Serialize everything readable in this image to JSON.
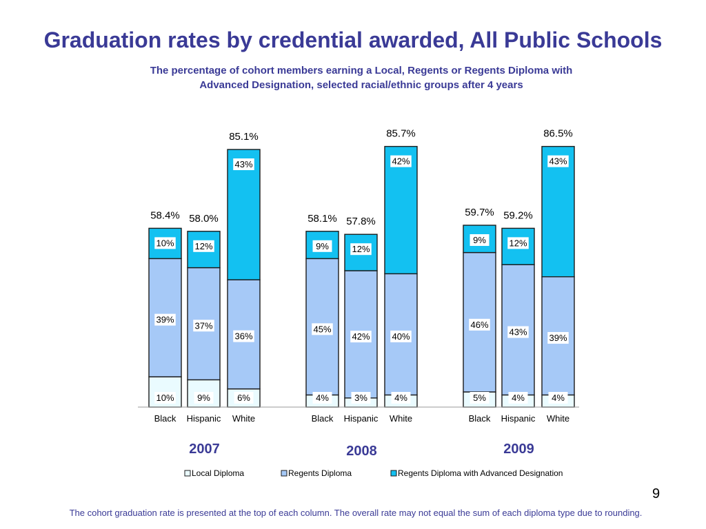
{
  "slide": {
    "title": "Graduation rates by credential awarded, All Public Schools",
    "subtitle_line1": "The percentage of cohort members earning a Local, Regents or Regents Diploma with",
    "subtitle_line2": "Advanced Designation, selected racial/ethnic groups after 4 years",
    "page_number": "9",
    "footnote": "The cohort graduation rate is presented at the top of each column. The overall rate may not equal the sum of each diploma type due to rounding."
  },
  "chart_data": {
    "type": "bar",
    "stacked": true,
    "title": "Graduation rates by credential awarded, All Public Schools",
    "legend_position": "bottom",
    "series": [
      {
        "name": "Local Diploma",
        "color": "#eafbff"
      },
      {
        "name": "Regents Diploma",
        "color": "#a6c9f7"
      },
      {
        "name": "Regents Diploma with Advanced Designation",
        "color": "#13c1f1"
      }
    ],
    "groups": [
      {
        "year": "2007",
        "bars": [
          {
            "category": "Black",
            "total": "58.4%",
            "values": [
              10,
              39,
              10
            ],
            "labels": [
              "10%",
              "39%",
              "10%"
            ]
          },
          {
            "category": "Hispanic",
            "total": "58.0%",
            "values": [
              9,
              37,
              12
            ],
            "labels": [
              "9%",
              "37%",
              "12%"
            ]
          },
          {
            "category": "White",
            "total": "85.1%",
            "values": [
              6,
              36,
              43
            ],
            "labels": [
              "6%",
              "36%",
              "43%"
            ]
          }
        ]
      },
      {
        "year": "2008",
        "bars": [
          {
            "category": "Black",
            "total": "58.1%",
            "values": [
              4,
              45,
              9
            ],
            "labels": [
              "4%",
              "45%",
              "9%"
            ]
          },
          {
            "category": "Hispanic",
            "total": "57.8%",
            "values": [
              3,
              42,
              12
            ],
            "labels": [
              "3%",
              "42%",
              "12%"
            ]
          },
          {
            "category": "White",
            "total": "85.7%",
            "values": [
              4,
              40,
              42
            ],
            "labels": [
              "4%",
              "40%",
              "42%"
            ]
          }
        ]
      },
      {
        "year": "2009",
        "bars": [
          {
            "category": "Black",
            "total": "59.7%",
            "values": [
              5,
              46,
              9
            ],
            "labels": [
              "5%",
              "46%",
              "9%"
            ]
          },
          {
            "category": "Hispanic",
            "total": "59.2%",
            "values": [
              4,
              43,
              12
            ],
            "labels": [
              "4%",
              "43%",
              "12%"
            ]
          },
          {
            "category": "White",
            "total": "86.5%",
            "values": [
              4,
              39,
              43
            ],
            "labels": [
              "4%",
              "39%",
              "43%"
            ]
          }
        ]
      }
    ]
  }
}
